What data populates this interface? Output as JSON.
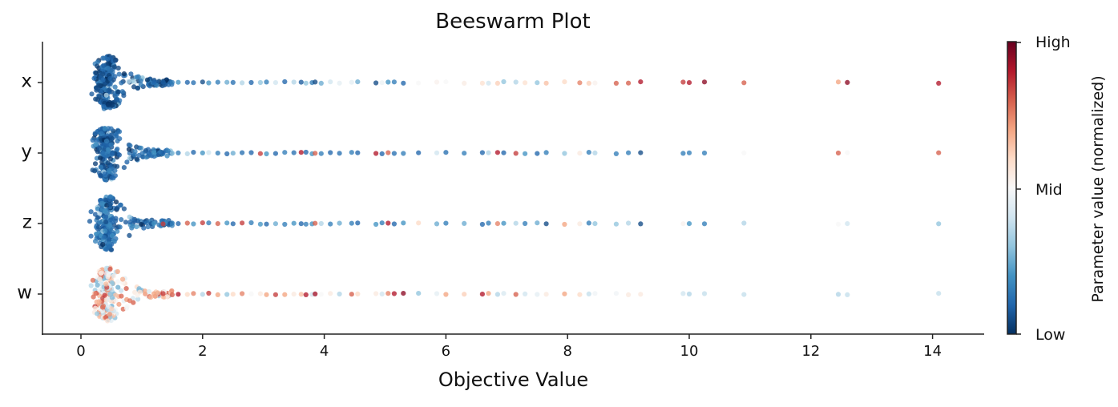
{
  "chart_data": {
    "type": "scatter",
    "subtype": "beeswarm",
    "title": "Beeswarm Plot",
    "xlabel": "Objective Value",
    "ylabel": "",
    "xlim": [
      -0.6,
      14.8
    ],
    "xticks": [
      0,
      2,
      4,
      6,
      8,
      10,
      12,
      14
    ],
    "categories": [
      "x",
      "y",
      "z",
      "w"
    ],
    "colorbar": {
      "label": "Parameter value (normalized)",
      "ticks": [
        "Low",
        "Mid",
        "High"
      ],
      "colormap": "RdBu_r",
      "stops": [
        "#053061",
        "#2166ac",
        "#4393c3",
        "#92c5de",
        "#d1e5f0",
        "#f7f7f7",
        "#fddbc7",
        "#f4a582",
        "#d6604d",
        "#b2182b",
        "#67001f"
      ]
    },
    "cluster": {
      "center": 0.42,
      "spread": 0.22,
      "count": 260
    },
    "trial_objective_values": [
      1.2,
      1.35,
      1.5,
      1.6,
      1.75,
      1.85,
      2.0,
      2.1,
      2.25,
      2.4,
      2.5,
      2.65,
      2.8,
      2.95,
      3.05,
      3.2,
      3.35,
      3.5,
      3.62,
      3.7,
      3.8,
      3.85,
      3.95,
      4.1,
      4.25,
      4.45,
      4.55,
      4.85,
      4.95,
      5.05,
      5.15,
      5.3,
      5.55,
      5.85,
      6.0,
      6.3,
      6.6,
      6.7,
      6.85,
      6.95,
      7.15,
      7.3,
      7.5,
      7.65,
      7.95,
      8.2,
      8.35,
      8.45,
      8.8,
      9.0,
      9.2,
      9.9,
      10.0,
      10.25,
      10.9,
      12.45,
      12.6,
      14.1
    ],
    "series": [
      {
        "name": "x",
        "cluster_color_mean": 0.08,
        "trial_colors": [
          0.1,
          0.08,
          0.15,
          0.2,
          0.1,
          0.12,
          0.05,
          0.2,
          0.15,
          0.25,
          0.12,
          0.35,
          0.1,
          0.3,
          0.15,
          0.4,
          0.1,
          0.35,
          0.08,
          0.3,
          0.15,
          0.05,
          0.25,
          0.4,
          0.45,
          0.45,
          0.25,
          0.05,
          0.47,
          0.2,
          0.15,
          0.1,
          0.5,
          0.52,
          0.5,
          0.54,
          0.58,
          0.4,
          0.62,
          0.3,
          0.35,
          0.58,
          0.3,
          0.65,
          0.6,
          0.75,
          0.62,
          0.52,
          0.8,
          0.8,
          0.9,
          0.85,
          0.9,
          0.95,
          0.8,
          0.7,
          0.95,
          0.9
        ]
      },
      {
        "name": "y",
        "cluster_color_mean": 0.1,
        "trial_colors": [
          0.2,
          0.1,
          0.3,
          0.15,
          0.35,
          0.1,
          0.2,
          0.4,
          0.15,
          0.1,
          0.25,
          0.12,
          0.1,
          0.85,
          0.2,
          0.1,
          0.15,
          0.12,
          0.9,
          0.1,
          0.2,
          0.8,
          0.15,
          0.1,
          0.12,
          0.15,
          0.1,
          0.9,
          0.1,
          0.8,
          0.12,
          0.15,
          0.1,
          0.4,
          0.12,
          0.15,
          0.1,
          0.35,
          0.9,
          0.1,
          0.85,
          0.2,
          0.1,
          0.15,
          0.3,
          0.55,
          0.15,
          0.35,
          0.15,
          0.15,
          0.05,
          0.15,
          0.15,
          0.15,
          0.5,
          0.8,
          0.5,
          0.8
        ]
      },
      {
        "name": "z",
        "cluster_color_mean": 0.12,
        "trial_colors": [
          0.2,
          0.85,
          0.15,
          0.1,
          0.8,
          0.2,
          0.85,
          0.15,
          0.8,
          0.2,
          0.1,
          0.85,
          0.15,
          0.2,
          0.1,
          0.25,
          0.15,
          0.2,
          0.1,
          0.15,
          0.2,
          0.8,
          0.35,
          0.15,
          0.25,
          0.15,
          0.1,
          0.2,
          0.15,
          0.9,
          0.1,
          0.2,
          0.6,
          0.25,
          0.15,
          0.25,
          0.1,
          0.15,
          0.75,
          0.2,
          0.35,
          0.15,
          0.25,
          0.05,
          0.7,
          0.55,
          0.15,
          0.3,
          0.3,
          0.35,
          0.05,
          0.52,
          0.2,
          0.15,
          0.35,
          0.5,
          0.4,
          0.3
        ]
      },
      {
        "name": "w",
        "cluster_color_mean": 0.55,
        "trial_colors": [
          0.7,
          0.85,
          0.8,
          0.9,
          0.6,
          0.75,
          0.35,
          0.85,
          0.7,
          0.3,
          0.6,
          0.75,
          0.5,
          0.55,
          0.7,
          0.85,
          0.7,
          0.55,
          0.65,
          0.9,
          0.4,
          0.92,
          0.5,
          0.55,
          0.35,
          0.8,
          0.6,
          0.55,
          0.4,
          0.75,
          0.9,
          0.95,
          0.3,
          0.45,
          0.7,
          0.62,
          0.9,
          0.7,
          0.35,
          0.42,
          0.8,
          0.4,
          0.45,
          0.55,
          0.7,
          0.6,
          0.38,
          0.48,
          0.48,
          0.55,
          0.55,
          0.4,
          0.35,
          0.38,
          0.38,
          0.35,
          0.38,
          0.38
        ]
      }
    ]
  }
}
